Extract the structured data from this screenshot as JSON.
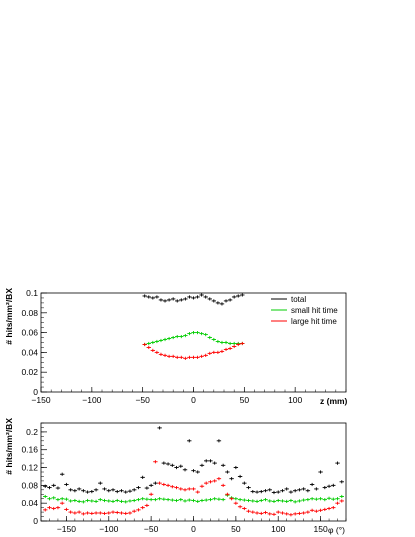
{
  "chart_data": [
    {
      "type": "scatter",
      "xlabel": "z (mm)",
      "ylabel": "# hits/mm²/BX",
      "xlim": [
        -150,
        150
      ],
      "ylim": [
        0,
        0.1
      ],
      "xticks": [
        "−150",
        "−100",
        "−50",
        "0",
        "50",
        "100"
      ],
      "yticks": [
        "0",
        "0.02",
        "0.04",
        "0.06",
        "0.08",
        "0.1"
      ],
      "legend": {
        "placement": "top-right"
      },
      "series": [
        {
          "name": "total",
          "color": "#000000",
          "x": [
            -48,
            -44,
            -40,
            -36,
            -32,
            -28,
            -24,
            -20,
            -16,
            -12,
            -8,
            -4,
            0,
            4,
            8,
            12,
            16,
            20,
            24,
            28,
            32,
            36,
            40,
            44,
            48
          ],
          "y": [
            0.097,
            0.096,
            0.095,
            0.096,
            0.093,
            0.092,
            0.093,
            0.094,
            0.092,
            0.093,
            0.094,
            0.096,
            0.095,
            0.096,
            0.098,
            0.096,
            0.094,
            0.092,
            0.09,
            0.089,
            0.092,
            0.093,
            0.096,
            0.097,
            0.098
          ]
        },
        {
          "name": "small hit time",
          "color": "#00cc00",
          "x": [
            -48,
            -44,
            -40,
            -36,
            -32,
            -28,
            -24,
            -20,
            -16,
            -12,
            -8,
            -4,
            0,
            4,
            8,
            12,
            16,
            20,
            24,
            28,
            32,
            36,
            40,
            44,
            48
          ],
          "y": [
            0.048,
            0.049,
            0.05,
            0.051,
            0.052,
            0.053,
            0.054,
            0.055,
            0.056,
            0.056,
            0.057,
            0.059,
            0.06,
            0.06,
            0.059,
            0.058,
            0.055,
            0.053,
            0.051,
            0.05,
            0.05,
            0.049,
            0.049,
            0.049,
            0.049
          ]
        },
        {
          "name": "large hit time",
          "color": "#ff0000",
          "x": [
            -48,
            -44,
            -40,
            -36,
            -32,
            -28,
            -24,
            -20,
            -16,
            -12,
            -8,
            -4,
            0,
            4,
            8,
            12,
            16,
            20,
            24,
            28,
            32,
            36,
            40,
            44,
            48
          ],
          "y": [
            0.048,
            0.045,
            0.042,
            0.04,
            0.038,
            0.037,
            0.036,
            0.036,
            0.035,
            0.035,
            0.034,
            0.035,
            0.035,
            0.035,
            0.036,
            0.037,
            0.039,
            0.04,
            0.04,
            0.041,
            0.043,
            0.044,
            0.046,
            0.048,
            0.049
          ]
        }
      ]
    },
    {
      "type": "scatter",
      "xlabel": "φ (°)",
      "ylabel": "# hits/mm²/BX",
      "xlim": [
        -180,
        180
      ],
      "ylim": [
        0,
        0.22
      ],
      "xticks": [
        "−150",
        "−100",
        "−50",
        "0",
        "50",
        "100",
        "150"
      ],
      "yticks": [
        "0",
        "0.04",
        "0.08",
        "0.12",
        "0.16",
        "0.2"
      ],
      "series": [
        {
          "name": "total",
          "color": "#000000",
          "x": [
            -175,
            -170,
            -165,
            -160,
            -155,
            -150,
            -145,
            -140,
            -135,
            -130,
            -125,
            -120,
            -115,
            -110,
            -105,
            -100,
            -95,
            -90,
            -85,
            -80,
            -75,
            -70,
            -65,
            -60,
            -55,
            -50,
            -45,
            -40,
            -35,
            -30,
            -25,
            -20,
            -15,
            -10,
            -5,
            0,
            5,
            10,
            15,
            20,
            25,
            30,
            35,
            40,
            45,
            50,
            55,
            60,
            65,
            70,
            75,
            80,
            85,
            90,
            95,
            100,
            105,
            110,
            115,
            120,
            125,
            130,
            135,
            140,
            145,
            150,
            155,
            160,
            165,
            170,
            175
          ],
          "y": [
            0.078,
            0.075,
            0.08,
            0.074,
            0.105,
            0.082,
            0.07,
            0.068,
            0.072,
            0.068,
            0.065,
            0.066,
            0.07,
            0.085,
            0.072,
            0.068,
            0.07,
            0.066,
            0.068,
            0.065,
            0.067,
            0.07,
            0.075,
            0.098,
            0.074,
            0.08,
            0.085,
            0.209,
            0.13,
            0.128,
            0.125,
            0.12,
            0.123,
            0.115,
            0.18,
            0.113,
            0.11,
            0.125,
            0.135,
            0.135,
            0.13,
            0.18,
            0.125,
            0.11,
            0.095,
            0.12,
            0.1,
            0.085,
            0.075,
            0.066,
            0.065,
            0.066,
            0.068,
            0.07,
            0.064,
            0.065,
            0.068,
            0.072,
            0.065,
            0.068,
            0.07,
            0.072,
            0.068,
            0.082,
            0.072,
            0.11,
            0.075,
            0.078,
            0.08,
            0.13,
            0.088
          ]
        },
        {
          "name": "small hit time",
          "color": "#00cc00",
          "x": [
            -175,
            -170,
            -165,
            -160,
            -155,
            -150,
            -145,
            -140,
            -135,
            -130,
            -125,
            -120,
            -115,
            -110,
            -105,
            -100,
            -95,
            -90,
            -85,
            -80,
            -75,
            -70,
            -65,
            -60,
            -55,
            -50,
            -45,
            -40,
            -35,
            -30,
            -25,
            -20,
            -15,
            -10,
            -5,
            0,
            5,
            10,
            15,
            20,
            25,
            30,
            35,
            40,
            45,
            50,
            55,
            60,
            65,
            70,
            75,
            80,
            85,
            90,
            95,
            100,
            105,
            110,
            115,
            120,
            125,
            130,
            135,
            140,
            145,
            150,
            155,
            160,
            165,
            170,
            175
          ],
          "y": [
            0.055,
            0.05,
            0.052,
            0.048,
            0.05,
            0.049,
            0.045,
            0.046,
            0.044,
            0.043,
            0.046,
            0.045,
            0.044,
            0.048,
            0.046,
            0.045,
            0.044,
            0.046,
            0.044,
            0.043,
            0.045,
            0.046,
            0.048,
            0.05,
            0.049,
            0.048,
            0.048,
            0.05,
            0.049,
            0.048,
            0.047,
            0.046,
            0.048,
            0.045,
            0.047,
            0.046,
            0.044,
            0.046,
            0.047,
            0.048,
            0.05,
            0.049,
            0.048,
            0.058,
            0.052,
            0.05,
            0.048,
            0.047,
            0.046,
            0.045,
            0.044,
            0.046,
            0.048,
            0.045,
            0.044,
            0.046,
            0.045,
            0.044,
            0.046,
            0.043,
            0.045,
            0.047,
            0.048,
            0.05,
            0.049,
            0.05,
            0.048,
            0.051,
            0.049,
            0.05,
            0.055
          ]
        },
        {
          "name": "large hit time",
          "color": "#ff0000",
          "x": [
            -175,
            -170,
            -165,
            -160,
            -155,
            -150,
            -145,
            -140,
            -135,
            -130,
            -125,
            -120,
            -115,
            -110,
            -105,
            -100,
            -95,
            -90,
            -85,
            -80,
            -75,
            -70,
            -65,
            -60,
            -55,
            -50,
            -45,
            -40,
            -35,
            -30,
            -25,
            -20,
            -15,
            -10,
            -5,
            0,
            5,
            10,
            15,
            20,
            25,
            30,
            35,
            40,
            45,
            50,
            55,
            60,
            65,
            70,
            75,
            80,
            85,
            90,
            95,
            100,
            105,
            110,
            115,
            120,
            125,
            130,
            135,
            140,
            145,
            150,
            155,
            160,
            165,
            170,
            175
          ],
          "y": [
            0.025,
            0.03,
            0.028,
            0.03,
            0.04,
            0.026,
            0.02,
            0.018,
            0.02,
            0.016,
            0.018,
            0.017,
            0.018,
            0.018,
            0.017,
            0.018,
            0.02,
            0.019,
            0.018,
            0.017,
            0.018,
            0.022,
            0.025,
            0.03,
            0.035,
            0.06,
            0.133,
            0.085,
            0.082,
            0.08,
            0.077,
            0.075,
            0.072,
            0.07,
            0.072,
            0.072,
            0.065,
            0.078,
            0.085,
            0.088,
            0.09,
            0.095,
            0.08,
            0.06,
            0.05,
            0.04,
            0.032,
            0.028,
            0.022,
            0.02,
            0.018,
            0.017,
            0.019,
            0.016,
            0.015,
            0.02,
            0.018,
            0.016,
            0.014,
            0.016,
            0.017,
            0.018,
            0.02,
            0.024,
            0.022,
            0.024,
            0.026,
            0.028,
            0.03,
            0.04,
            0.045
          ]
        }
      ]
    }
  ]
}
